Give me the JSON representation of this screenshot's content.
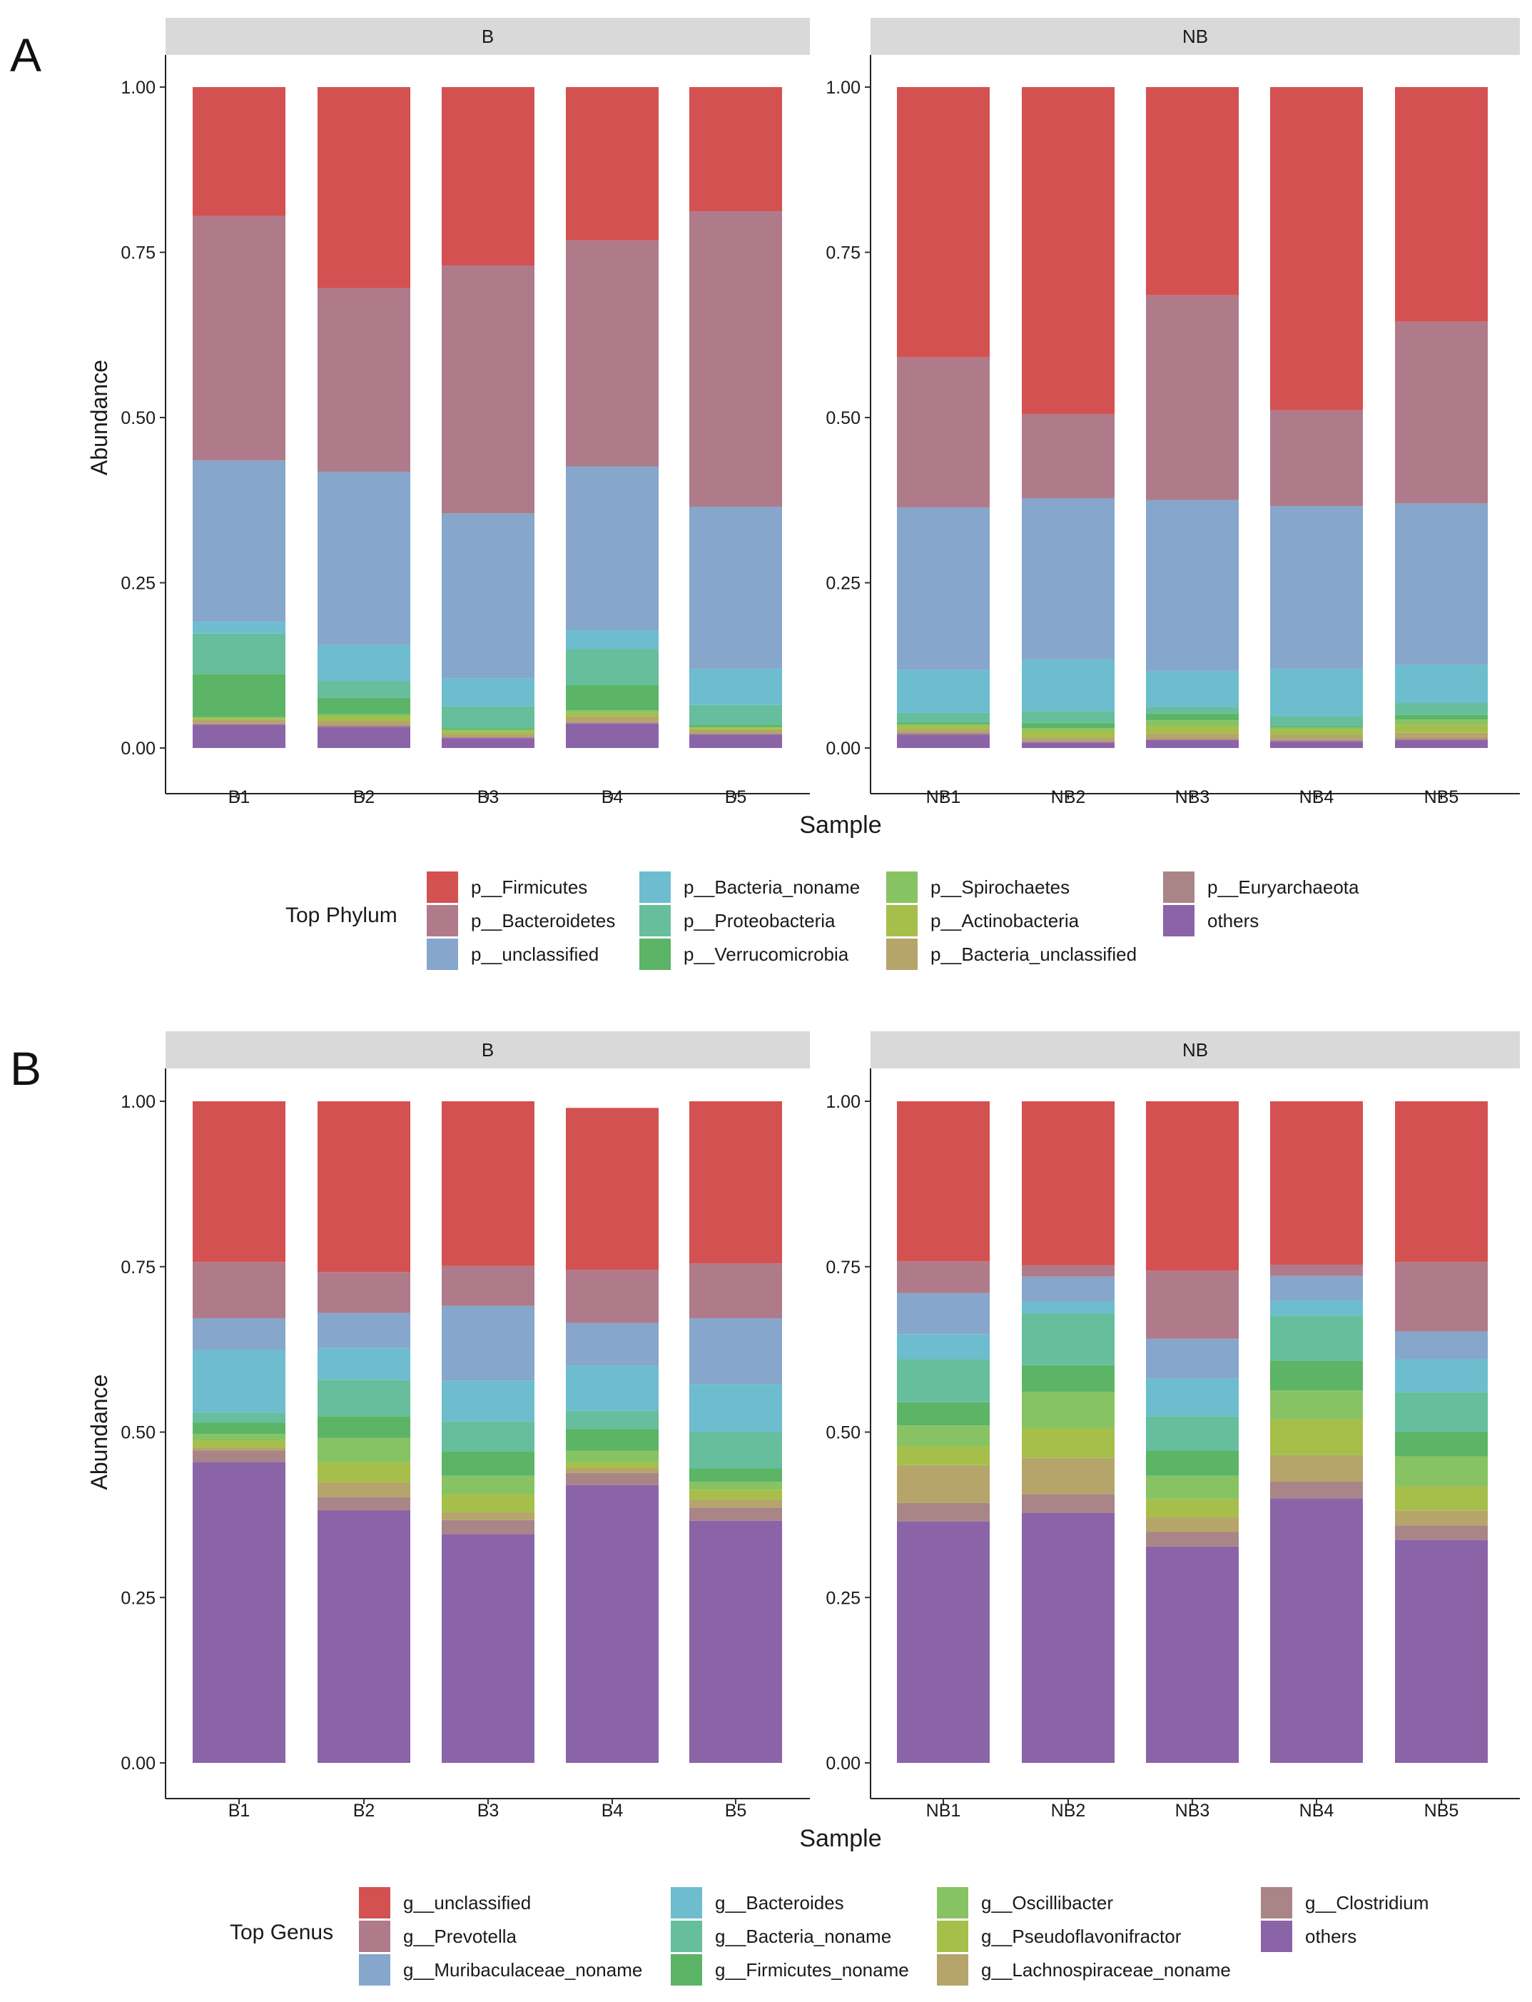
{
  "chart_data": [
    {
      "type": "bar",
      "stacked": true,
      "panel_label": "A",
      "ylabel": "Abundance",
      "xlabel": "Sample",
      "ylim": [
        0,
        1
      ],
      "yticks": [
        "0.00",
        "0.25",
        "0.50",
        "0.75",
        "1.00"
      ],
      "facets": [
        {
          "label": "B",
          "categories": [
            "B1",
            "B2",
            "B3",
            "B4",
            "B5"
          ]
        },
        {
          "label": "NB",
          "categories": [
            "NB1",
            "NB2",
            "NB3",
            "NB4",
            "NB5"
          ]
        }
      ],
      "legend_title": "Top Phylum",
      "legend_position": "bottom",
      "series": [
        {
          "name": "others",
          "color": "#8B64A8",
          "values": [
            0.035,
            0.032,
            0.015,
            0.037,
            0.02,
            0.02,
            0.008,
            0.012,
            0.01,
            0.012
          ]
        },
        {
          "name": "p__Euryarchaeota",
          "color": "#A98587",
          "values": [
            0.002,
            0.002,
            0.002,
            0.002,
            0.002,
            0.003,
            0.002,
            0.002,
            0.002,
            0.003
          ]
        },
        {
          "name": "p__Bacteria_unclassified",
          "color": "#B5A56B",
          "values": [
            0.006,
            0.007,
            0.004,
            0.008,
            0.005,
            0.005,
            0.006,
            0.008,
            0.008,
            0.008
          ]
        },
        {
          "name": "p__Actinobacteria",
          "color": "#A6BF4A",
          "values": [
            0.002,
            0.006,
            0.004,
            0.006,
            0.003,
            0.005,
            0.01,
            0.01,
            0.008,
            0.012
          ]
        },
        {
          "name": "p__Spirochaetes",
          "color": "#88C363",
          "values": [
            0.002,
            0.004,
            0.003,
            0.004,
            0.002,
            0.003,
            0.004,
            0.01,
            0.003,
            0.008
          ]
        },
        {
          "name": "p__Verrucomicrobia",
          "color": "#5CB467",
          "values": [
            0.065,
            0.025,
            0.002,
            0.038,
            0.003,
            0.003,
            0.008,
            0.01,
            0.002,
            0.007
          ]
        },
        {
          "name": "p__Proteobacteria",
          "color": "#66BE9C",
          "values": [
            0.061,
            0.025,
            0.033,
            0.055,
            0.03,
            0.014,
            0.018,
            0.01,
            0.015,
            0.018
          ]
        },
        {
          "name": "p__Bacteria_noname",
          "color": "#6DBDCF",
          "values": [
            0.018,
            0.055,
            0.042,
            0.028,
            0.055,
            0.065,
            0.078,
            0.055,
            0.072,
            0.058
          ]
        },
        {
          "name": "p__unclassified",
          "color": "#86A6CB",
          "values": [
            0.244,
            0.262,
            0.25,
            0.248,
            0.245,
            0.246,
            0.244,
            0.258,
            0.246,
            0.244
          ]
        },
        {
          "name": "p__Bacteroidetes",
          "color": "#AF7B8A",
          "values": [
            0.37,
            0.278,
            0.375,
            0.342,
            0.447,
            0.227,
            0.127,
            0.31,
            0.145,
            0.275
          ]
        },
        {
          "name": "p__Firmicutes",
          "color": "#D45152",
          "values": [
            0.195,
            0.304,
            0.27,
            0.232,
            0.188,
            0.409,
            0.495,
            0.315,
            0.489,
            0.355
          ]
        }
      ],
      "legend_order": [
        "p__Firmicutes",
        "p__Bacteroidetes",
        "p__unclassified",
        "p__Bacteria_noname",
        "p__Proteobacteria",
        "p__Verrucomicrobia",
        "p__Spirochaetes",
        "p__Actinobacteria",
        "p__Bacteria_unclassified",
        "p__Euryarchaeota",
        "others"
      ]
    },
    {
      "type": "bar",
      "stacked": true,
      "panel_label": "B",
      "ylabel": "Abundance",
      "xlabel": "Sample",
      "ylim": [
        0,
        1
      ],
      "yticks": [
        "0.00",
        "0.25",
        "0.50",
        "0.75",
        "1.00"
      ],
      "facets": [
        {
          "label": "B",
          "categories": [
            "B1",
            "B2",
            "B3",
            "B4",
            "B5"
          ]
        },
        {
          "label": "NB",
          "categories": [
            "NB1",
            "NB2",
            "NB3",
            "NB4",
            "NB5"
          ]
        }
      ],
      "legend_title": "Top Genus",
      "legend_position": "bottom",
      "series": [
        {
          "name": "others",
          "color": "#8B64A8",
          "values": [
            0.455,
            0.382,
            0.346,
            0.42,
            0.366,
            0.365,
            0.378,
            0.327,
            0.4,
            0.337
          ]
        },
        {
          "name": "g__Clostridium",
          "color": "#A98587",
          "values": [
            0.017,
            0.02,
            0.021,
            0.018,
            0.02,
            0.028,
            0.028,
            0.022,
            0.025,
            0.022
          ]
        },
        {
          "name": "g__Lachnospiraceae_noname",
          "color": "#B5A56B",
          "values": [
            0.005,
            0.022,
            0.012,
            0.008,
            0.012,
            0.057,
            0.055,
            0.022,
            0.04,
            0.022
          ]
        },
        {
          "name": "g__Pseudoflavonifractor",
          "color": "#A6BF4A",
          "values": [
            0.01,
            0.03,
            0.027,
            0.008,
            0.015,
            0.028,
            0.045,
            0.028,
            0.054,
            0.037
          ]
        },
        {
          "name": "g__Oscillibacter",
          "color": "#88C363",
          "values": [
            0.01,
            0.037,
            0.028,
            0.018,
            0.012,
            0.032,
            0.055,
            0.035,
            0.044,
            0.045
          ]
        },
        {
          "name": "g__Firmicutes_noname",
          "color": "#5CB467",
          "values": [
            0.017,
            0.033,
            0.037,
            0.033,
            0.02,
            0.035,
            0.04,
            0.038,
            0.045,
            0.037
          ]
        },
        {
          "name": "g__Bacteria_noname",
          "color": "#66BE9C",
          "values": [
            0.015,
            0.055,
            0.045,
            0.027,
            0.055,
            0.065,
            0.078,
            0.052,
            0.068,
            0.06
          ]
        },
        {
          "name": "g__Bacteroides",
          "color": "#6DBDCF",
          "values": [
            0.095,
            0.048,
            0.062,
            0.068,
            0.072,
            0.038,
            0.018,
            0.057,
            0.023,
            0.05
          ]
        },
        {
          "name": "g__Muribaculaceae_noname",
          "color": "#86A6CB",
          "values": [
            0.048,
            0.053,
            0.113,
            0.065,
            0.1,
            0.062,
            0.038,
            0.06,
            0.037,
            0.042
          ]
        },
        {
          "name": "g__Prevotella",
          "color": "#AF7B8A",
          "values": [
            0.085,
            0.062,
            0.06,
            0.08,
            0.083,
            0.048,
            0.017,
            0.103,
            0.017,
            0.105
          ]
        },
        {
          "name": "g__unclassified",
          "color": "#D45152",
          "values": [
            0.243,
            0.258,
            0.249,
            0.245,
            0.245,
            0.242,
            0.248,
            0.256,
            0.247,
            0.243
          ]
        }
      ],
      "legend_order": [
        "g__unclassified",
        "g__Prevotella",
        "g__Muribaculaceae_noname",
        "g__Bacteroides",
        "g__Bacteria_noname",
        "g__Firmicutes_noname",
        "g__Oscillibacter",
        "g__Pseudoflavonifractor",
        "g__Lachnospiraceae_noname",
        "g__Clostridium",
        "others"
      ]
    }
  ]
}
